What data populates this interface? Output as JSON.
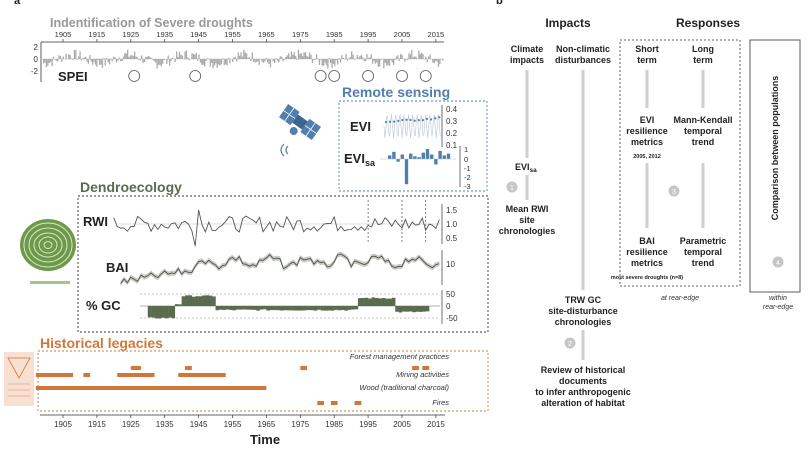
{
  "panel_letters": {
    "a": "a",
    "b": "b"
  },
  "left": {
    "spei": {
      "title": "Indentification of Severe droughts",
      "label": "SPEI",
      "ticks": [
        "2",
        "0",
        "-2"
      ],
      "years": [
        "1905",
        "1915",
        "1925",
        "1935",
        "1945",
        "1955",
        "1965",
        "1975",
        "1985",
        "1995",
        "2005",
        "2015"
      ],
      "color": "#aaaaaa"
    },
    "remote": {
      "title": "Remote sensing",
      "evi_label": "EVI",
      "evisa_label": "EVI",
      "evisa_sub": "sa",
      "evi_ticks": [
        "0.4",
        "0.3",
        "0.2",
        "0.1"
      ],
      "evisa_ticks": [
        "1",
        "0",
        "-1",
        "-2",
        "-3"
      ],
      "color": "#4f7fae"
    },
    "dendro": {
      "title": "Dendroecology",
      "rwi_label": "RWI",
      "bai_label": "BAI",
      "gc_label": "% GC",
      "rwi_ticks": [
        "1.5",
        "1.0",
        "0.5"
      ],
      "bai_ticks": [
        "10"
      ],
      "gc_ticks": [
        "50",
        "0",
        "-50"
      ],
      "color": "#5a6b4e"
    },
    "hist": {
      "title": "Historical legacies",
      "labels": [
        "Forest management practices",
        "Mining activities",
        "Wood (traditional charcoal)",
        "Fires"
      ],
      "color": "#d2773a"
    },
    "xaxis": {
      "years": [
        "1905",
        "1915",
        "1925",
        "1935",
        "1945",
        "1955",
        "1965",
        "1975",
        "1985",
        "1995",
        "2005",
        "2015"
      ],
      "title": "Time"
    }
  },
  "right": {
    "impacts_header": "Impacts",
    "responses_header": "Responses",
    "climate_impacts": [
      "Climate",
      "impacts"
    ],
    "nonclimatic": [
      "Non-climatic",
      "disturbances"
    ],
    "evisa": "EVI",
    "evisa_sub": "sa",
    "mean_rwi": [
      "Mean RWI",
      "site",
      "chronologies"
    ],
    "trw_gc": [
      "TRW   GC",
      "site-disturbance",
      "chronologies"
    ],
    "review": [
      "Review of historical",
      "documents",
      "to infer anthropogenic",
      "alteration of habitat"
    ],
    "short_term": [
      "Short",
      "term"
    ],
    "long_term": [
      "Long",
      "term"
    ],
    "evi_res": [
      "EVI",
      "resilience",
      "metrics"
    ],
    "evi_res_years": "2005, 2012",
    "mann": [
      "Mann-Kendall",
      "temporal",
      "trend"
    ],
    "bai_res": [
      "BAI",
      "resilience",
      "metrics"
    ],
    "bai_res_note": "most severe droughts (n=8)",
    "param": [
      "Parametric",
      "temporal",
      "trend"
    ],
    "comparison": "Comparison between populations",
    "at_rear": "at rear-edge",
    "within": [
      "within",
      "rear-edge"
    ],
    "circles": [
      "1",
      "2",
      "3",
      "4"
    ]
  }
}
